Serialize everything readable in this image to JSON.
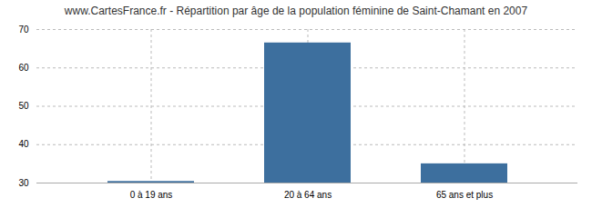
{
  "chart_data": {
    "type": "bar",
    "title": "www.CartesFrance.fr - Répartition par âge de la population féminine de Saint-Chamant en 2007",
    "categories": [
      "0 à 19 ans",
      "20 à 64 ans",
      "65 ans et plus"
    ],
    "values": [
      30.4,
      66.5,
      35
    ],
    "color": "#3d6f9e",
    "ylim": [
      30,
      70
    ],
    "yticks": [
      30,
      40,
      50,
      60,
      70
    ],
    "grid": true
  }
}
